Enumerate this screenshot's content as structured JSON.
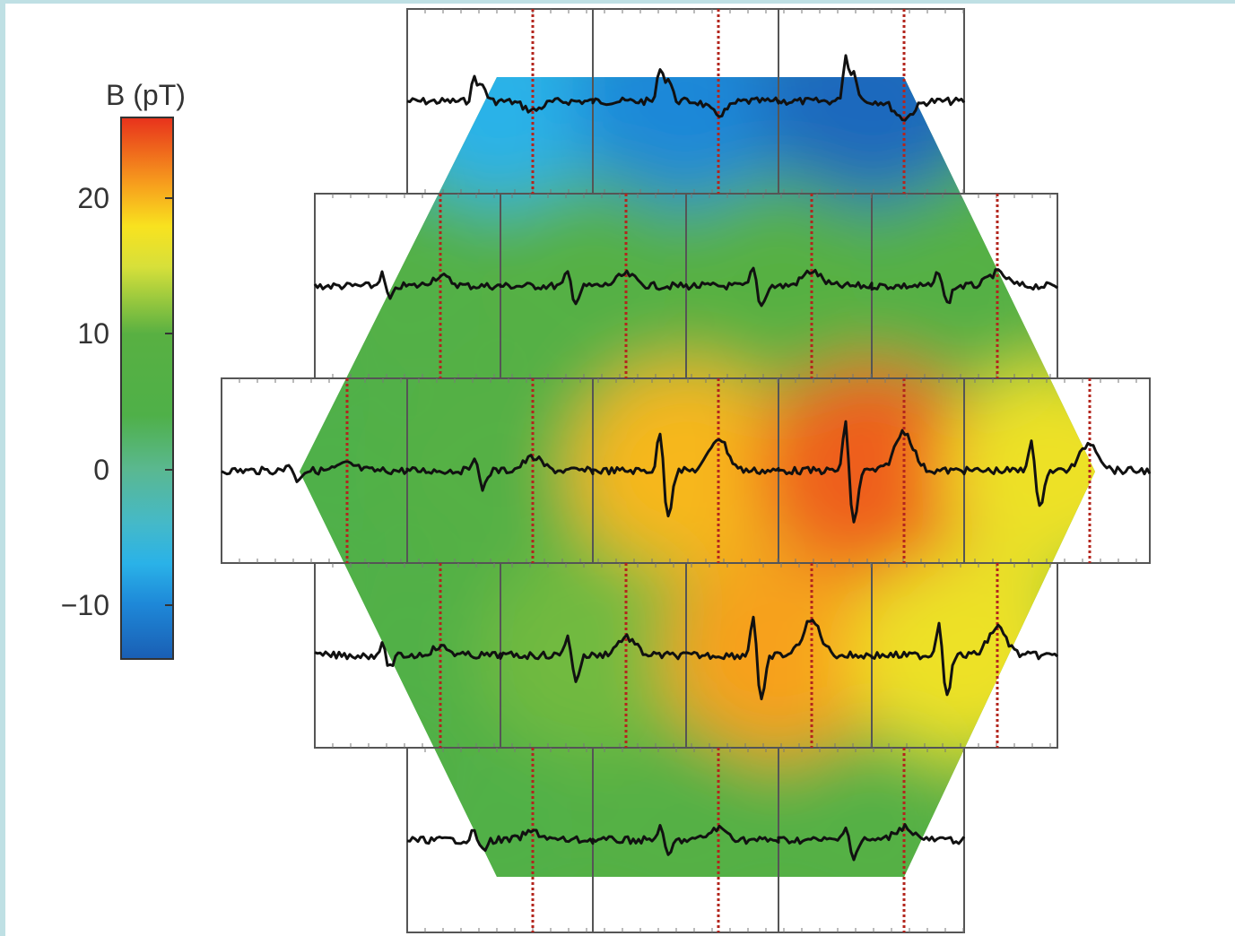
{
  "chart_data": {
    "type": "heatmap",
    "colorbar": {
      "title": "B (pT)",
      "range": [
        -14,
        26
      ],
      "ticks": [
        {
          "value": 20,
          "label": "20"
        },
        {
          "value": 10,
          "label": "10"
        },
        {
          "value": 0,
          "label": "0"
        },
        {
          "value": -10,
          "label": "−10"
        }
      ],
      "stops": [
        {
          "value": -14,
          "color": "#1a5fb4"
        },
        {
          "value": -10,
          "color": "#1e88d8"
        },
        {
          "value": -7,
          "color": "#2ab2e8"
        },
        {
          "value": -4,
          "color": "#45b9c8"
        },
        {
          "value": 0,
          "color": "#5ab890"
        },
        {
          "value": 4,
          "color": "#4fb048"
        },
        {
          "value": 10,
          "color": "#58b042"
        },
        {
          "value": 15,
          "color": "#d7e03a"
        },
        {
          "value": 18,
          "color": "#f8e21f"
        },
        {
          "value": 21,
          "color": "#f7a11d"
        },
        {
          "value": 26,
          "color": "#e8331c"
        }
      ]
    },
    "sensor_rows": [
      {
        "row": 1,
        "channels": 3,
        "field_pT": [
          -7,
          -10,
          -13
        ]
      },
      {
        "row": 2,
        "channels": 4,
        "field_pT": [
          6,
          7,
          9,
          8
        ]
      },
      {
        "row": 3,
        "channels": 5,
        "field_pT": [
          4,
          8,
          20,
          24,
          17
        ]
      },
      {
        "row": 4,
        "channels": 4,
        "field_pT": [
          5,
          11,
          21,
          17
        ]
      },
      {
        "row": 5,
        "channels": 3,
        "field_pT": [
          5,
          7,
          8
        ]
      }
    ],
    "reference_line_color": "#b3251d",
    "trace_color": "#111111"
  }
}
